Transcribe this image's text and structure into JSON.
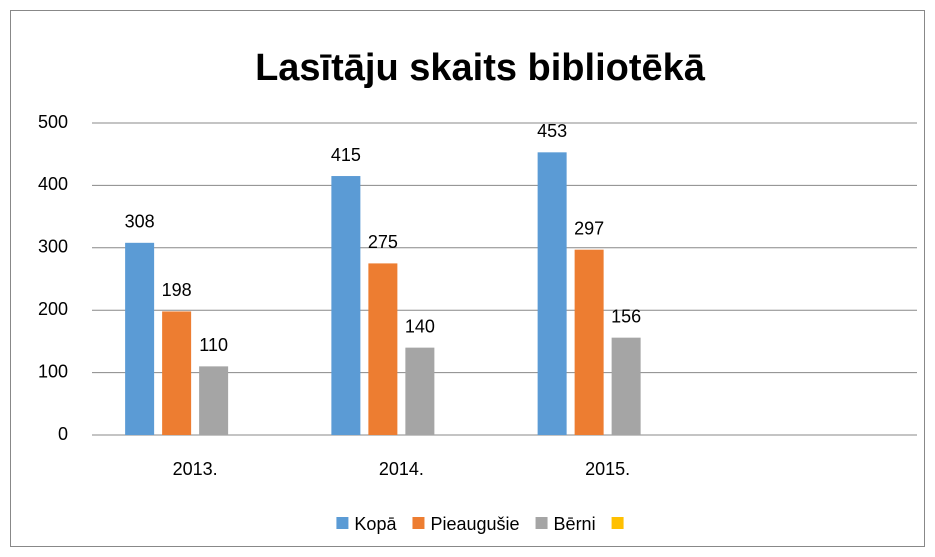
{
  "chart_data": {
    "type": "bar",
    "title": "Lasītāju skaits bibliotēkā",
    "categories": [
      "2013.",
      "2014.",
      "2015.",
      null
    ],
    "series": [
      {
        "name": "Kopā",
        "color": "#5b9bd5",
        "values": [
          308,
          415,
          453,
          null
        ]
      },
      {
        "name": "Pieaugušie",
        "color": "#ed7d31",
        "values": [
          198,
          275,
          297,
          null
        ]
      },
      {
        "name": "Bērni",
        "color": "#a5a5a5",
        "values": [
          110,
          140,
          156,
          null
        ]
      },
      {
        "name": null,
        "color": "#ffc000",
        "values": [
          null,
          null,
          null,
          null
        ]
      }
    ],
    "ylim": [
      0,
      500
    ],
    "yticks": [
      0,
      100,
      200,
      300,
      400,
      500
    ],
    "grid": true,
    "legend": "bottom"
  }
}
